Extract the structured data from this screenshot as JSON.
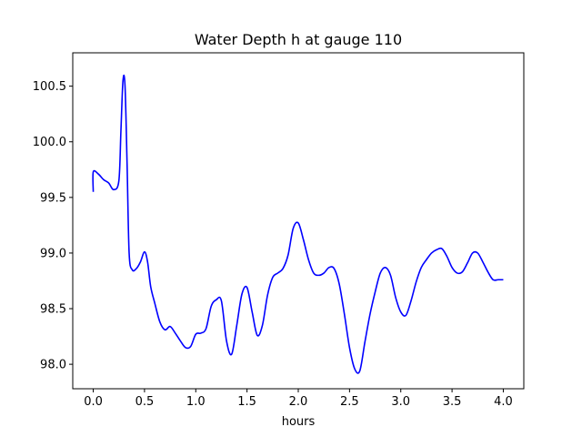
{
  "chart_data": {
    "type": "line",
    "title": "Water Depth h at gauge 110",
    "xlabel": "hours",
    "ylabel": "",
    "xlim": [
      -0.2,
      4.2
    ],
    "ylim": [
      97.78,
      100.8
    ],
    "xticks": [
      0.0,
      0.5,
      1.0,
      1.5,
      2.0,
      2.5,
      3.0,
      3.5,
      4.0
    ],
    "xtick_labels": [
      "0.0",
      "0.5",
      "1.0",
      "1.5",
      "2.0",
      "2.5",
      "3.0",
      "3.5",
      "4.0"
    ],
    "yticks": [
      98.0,
      98.5,
      99.0,
      99.5,
      100.0,
      100.5
    ],
    "ytick_labels": [
      "98.0",
      "98.5",
      "99.0",
      "99.5",
      "100.0",
      "100.5"
    ],
    "grid": false,
    "series": [
      {
        "color": "#0000ff",
        "x": [
          0.0,
          0.0,
          0.05,
          0.1,
          0.15,
          0.2,
          0.25,
          0.27,
          0.29,
          0.31,
          0.33,
          0.35,
          0.38,
          0.42,
          0.46,
          0.5,
          0.53,
          0.56,
          0.6,
          0.65,
          0.7,
          0.75,
          0.8,
          0.85,
          0.9,
          0.95,
          1.0,
          1.05,
          1.1,
          1.15,
          1.2,
          1.25,
          1.3,
          1.35,
          1.4,
          1.45,
          1.5,
          1.55,
          1.6,
          1.65,
          1.7,
          1.75,
          1.8,
          1.85,
          1.9,
          1.95,
          2.0,
          2.05,
          2.1,
          2.15,
          2.2,
          2.25,
          2.3,
          2.35,
          2.4,
          2.45,
          2.5,
          2.55,
          2.6,
          2.65,
          2.7,
          2.75,
          2.8,
          2.85,
          2.9,
          2.95,
          3.0,
          3.05,
          3.1,
          3.15,
          3.2,
          3.25,
          3.3,
          3.35,
          3.4,
          3.45,
          3.5,
          3.55,
          3.6,
          3.65,
          3.7,
          3.75,
          3.8,
          3.85,
          3.9,
          3.95,
          4.0
        ],
        "y": [
          99.55,
          99.73,
          99.71,
          99.66,
          99.63,
          99.57,
          99.65,
          100.1,
          100.55,
          100.5,
          99.8,
          99.0,
          98.85,
          98.86,
          98.92,
          99.01,
          98.92,
          98.7,
          98.55,
          98.38,
          98.31,
          98.34,
          98.28,
          98.21,
          98.15,
          98.16,
          98.27,
          98.28,
          98.32,
          98.52,
          98.58,
          98.57,
          98.21,
          98.09,
          98.35,
          98.63,
          98.69,
          98.47,
          98.26,
          98.35,
          98.62,
          98.78,
          98.82,
          98.86,
          98.98,
          99.22,
          99.27,
          99.12,
          98.94,
          98.82,
          98.8,
          98.82,
          98.87,
          98.86,
          98.72,
          98.45,
          98.15,
          97.96,
          97.94,
          98.2,
          98.45,
          98.65,
          98.82,
          98.87,
          98.8,
          98.6,
          98.47,
          98.44,
          98.57,
          98.74,
          98.87,
          98.94,
          99.0,
          99.03,
          99.04,
          98.97,
          98.87,
          98.82,
          98.83,
          98.91,
          99.0,
          99.0,
          98.92,
          98.83,
          98.76,
          98.76,
          98.76
        ]
      }
    ]
  }
}
